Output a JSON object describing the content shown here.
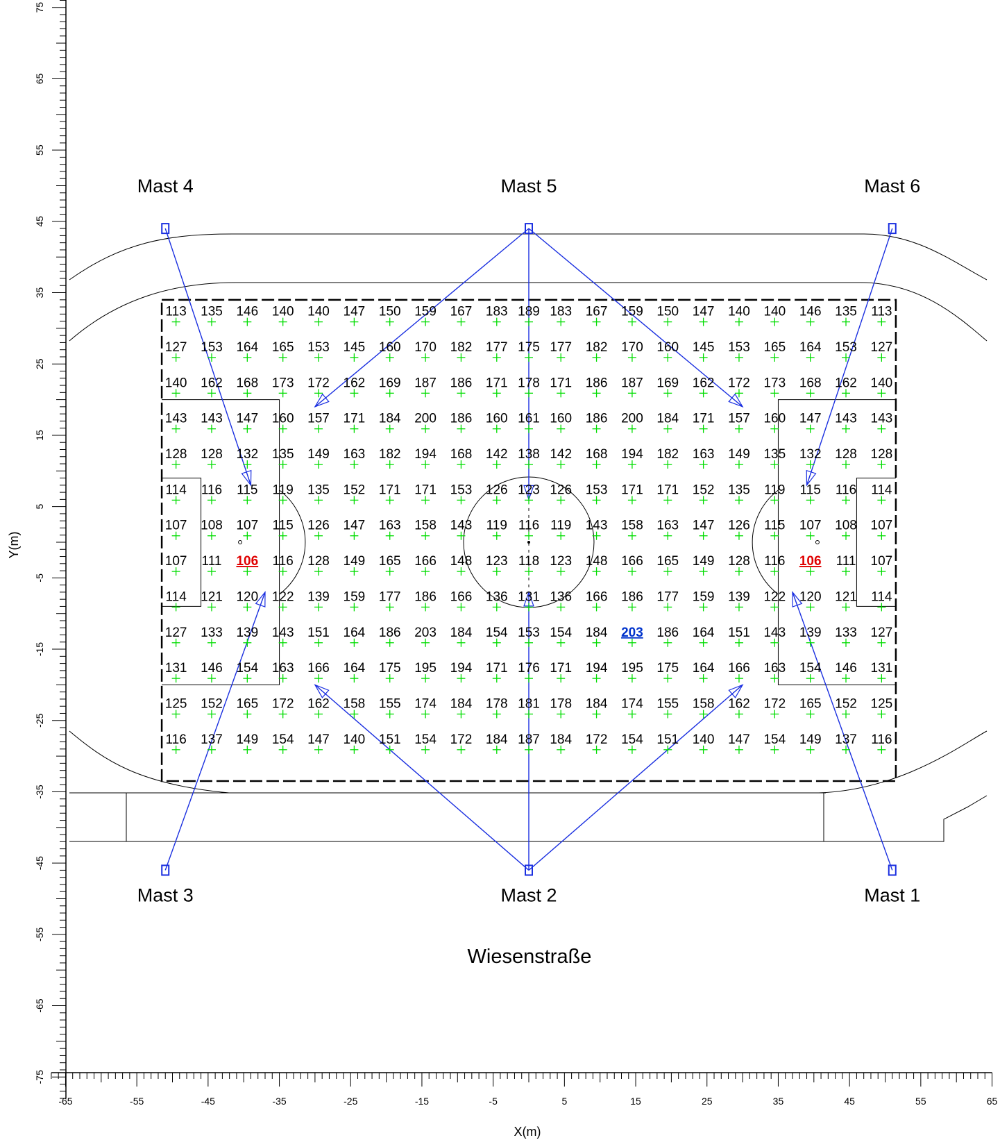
{
  "axes": {
    "xlabel": "X(m)",
    "ylabel": "Y(m)",
    "xlim": [
      -67,
      65
    ],
    "ylim": [
      -78,
      77
    ],
    "x_tick_labels": [
      -65,
      -55,
      -45,
      -35,
      -25,
      -15,
      -5,
      5,
      15,
      25,
      35,
      45,
      55,
      65
    ],
    "y_tick_labels": [
      75,
      65,
      55,
      45,
      35,
      25,
      15,
      5,
      -5,
      -15,
      -25,
      -35,
      -45,
      -55,
      -65,
      -75
    ]
  },
  "street_label": "Wiesenstraße",
  "masts": [
    {
      "name": "Mast 1",
      "x": 51,
      "y": -46,
      "label_position": "below"
    },
    {
      "name": "Mast 2",
      "x": 0,
      "y": -46,
      "label_position": "below"
    },
    {
      "name": "Mast 3",
      "x": -51,
      "y": -46,
      "label_position": "below"
    },
    {
      "name": "Mast 4",
      "x": -51,
      "y": 44,
      "label_position": "above"
    },
    {
      "name": "Mast 5",
      "x": 0,
      "y": 44,
      "label_position": "above"
    },
    {
      "name": "Mast 6",
      "x": 51,
      "y": 44,
      "label_position": "above"
    }
  ],
  "floodlight_aims": [
    {
      "mast": "Mast 4",
      "to": [
        -39,
        8
      ]
    },
    {
      "mast": "Mast 6",
      "to": [
        39,
        8
      ]
    },
    {
      "mast": "Mast 5",
      "to": [
        -30,
        19
      ]
    },
    {
      "mast": "Mast 5",
      "to": [
        0,
        6
      ]
    },
    {
      "mast": "Mast 5",
      "to": [
        30,
        19
      ]
    },
    {
      "mast": "Mast 3",
      "to": [
        -37,
        -7
      ]
    },
    {
      "mast": "Mast 1",
      "to": [
        37,
        -7
      ]
    },
    {
      "mast": "Mast 2",
      "to": [
        -30,
        -20
      ]
    },
    {
      "mast": "Mast 2",
      "to": [
        0,
        -7
      ]
    },
    {
      "mast": "Mast 2",
      "to": [
        30,
        -20
      ]
    }
  ],
  "chart_data": {
    "type": "table",
    "description_values": "illuminance calculation grid",
    "x": [
      -49.5,
      -44.5,
      -39.5,
      -34.5,
      -29.5,
      -24.5,
      -19.5,
      -14.5,
      -9.5,
      -4.5,
      0,
      4.5,
      9.5,
      14.5,
      19.5,
      24.5,
      29.5,
      34.5,
      39.5,
      44.5,
      49.5
    ],
    "y": [
      31,
      26,
      21,
      16,
      11,
      6,
      1,
      -4,
      -9,
      -14,
      -19,
      -24,
      -29
    ],
    "values": [
      [
        113,
        135,
        146,
        140,
        140,
        147,
        150,
        159,
        167,
        183,
        189,
        183,
        167,
        159,
        150,
        147,
        140,
        140,
        146,
        135,
        113
      ],
      [
        127,
        153,
        164,
        165,
        153,
        145,
        160,
        170,
        182,
        177,
        175,
        177,
        182,
        170,
        160,
        145,
        153,
        165,
        164,
        153,
        127
      ],
      [
        140,
        162,
        168,
        173,
        172,
        162,
        169,
        187,
        186,
        171,
        178,
        171,
        186,
        187,
        169,
        162,
        172,
        173,
        168,
        162,
        140
      ],
      [
        143,
        143,
        147,
        160,
        157,
        171,
        184,
        200,
        186,
        160,
        161,
        160,
        186,
        200,
        184,
        171,
        157,
        160,
        147,
        143,
        143
      ],
      [
        128,
        128,
        132,
        135,
        149,
        163,
        182,
        194,
        168,
        142,
        138,
        142,
        168,
        194,
        182,
        163,
        149,
        135,
        132,
        128,
        128
      ],
      [
        114,
        116,
        115,
        119,
        135,
        152,
        171,
        171,
        153,
        126,
        123,
        126,
        153,
        171,
        171,
        152,
        135,
        119,
        115,
        116,
        114
      ],
      [
        107,
        108,
        107,
        115,
        126,
        147,
        163,
        158,
        143,
        119,
        116,
        119,
        143,
        158,
        163,
        147,
        126,
        115,
        107,
        108,
        107
      ],
      [
        107,
        111,
        106,
        116,
        128,
        149,
        165,
        166,
        148,
        123,
        118,
        123,
        148,
        166,
        165,
        149,
        128,
        116,
        106,
        111,
        107
      ],
      [
        114,
        121,
        120,
        122,
        139,
        159,
        177,
        186,
        166,
        136,
        131,
        136,
        166,
        186,
        177,
        159,
        139,
        122,
        120,
        121,
        114
      ],
      [
        127,
        133,
        139,
        143,
        151,
        164,
        186,
        203,
        184,
        154,
        153,
        154,
        184,
        203,
        186,
        164,
        151,
        143,
        139,
        133,
        127
      ],
      [
        131,
        146,
        154,
        163,
        166,
        164,
        175,
        195,
        194,
        171,
        176,
        171,
        194,
        195,
        175,
        164,
        166,
        163,
        154,
        146,
        131
      ],
      [
        125,
        152,
        165,
        172,
        162,
        158,
        155,
        174,
        184,
        178,
        181,
        178,
        184,
        174,
        155,
        158,
        162,
        172,
        165,
        152,
        125
      ],
      [
        116,
        137,
        149,
        154,
        147,
        140,
        151,
        154,
        172,
        184,
        187,
        184,
        172,
        154,
        151,
        140,
        147,
        154,
        149,
        137,
        116
      ]
    ],
    "min_markers": [
      [
        7,
        2
      ],
      [
        7,
        18
      ]
    ],
    "max_markers": [
      [
        9,
        13
      ]
    ]
  }
}
